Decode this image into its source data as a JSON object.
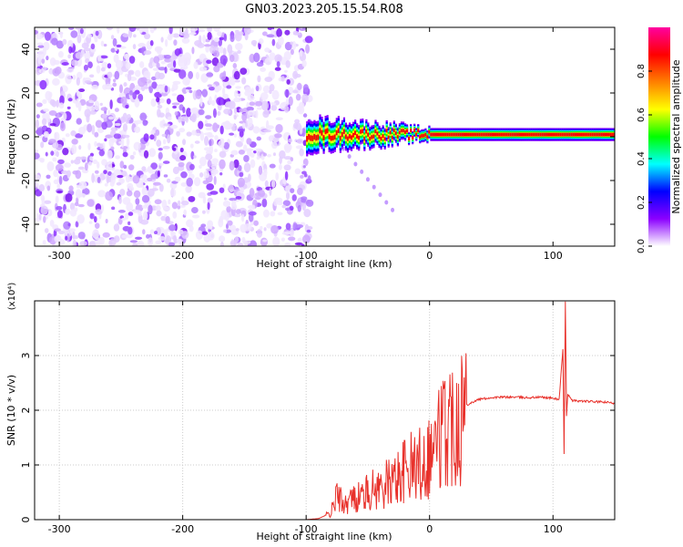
{
  "figure_title": "GN03.2023.205.15.54.R08",
  "chart_data": [
    {
      "type": "heatmap",
      "title": "",
      "xlabel": "Height of straight line (km)",
      "ylabel": "Frequency (Hz)",
      "xlim": [
        -320,
        150
      ],
      "ylim": [
        -50,
        50
      ],
      "xticks": [
        -300,
        -200,
        -100,
        0,
        100
      ],
      "yticks": [
        -40,
        -20,
        0,
        20,
        40
      ],
      "colorbar": {
        "label": "Normalized spectral amplitude",
        "range": [
          0,
          1
        ],
        "ticks": [
          0.0,
          0.2,
          0.4,
          0.6,
          0.8
        ],
        "colormap": [
          "#ffffff",
          "#8b00ff",
          "#0000ff",
          "#00ffff",
          "#00ff00",
          "#ffff00",
          "#ff8000",
          "#ff0000",
          "#ff00a0"
        ]
      },
      "features": {
        "noise_region_x": [
          -320,
          -100
        ],
        "signal_band_x": [
          -100,
          150
        ],
        "signal_center_frequency_hz": 1
      }
    },
    {
      "type": "line",
      "title": "",
      "xlabel": "Height of straight line (km)",
      "ylabel": "SNR (10 * v/v)",
      "y_multiplier": "(x10⁴)",
      "xlim": [
        -320,
        150
      ],
      "ylim": [
        0,
        4
      ],
      "xticks": [
        -300,
        -200,
        -100,
        0,
        100
      ],
      "yticks": [
        0,
        1,
        2,
        3
      ],
      "color": "#e8302a",
      "series": [
        {
          "x": [
            -320,
            -100,
            -90,
            -80,
            -75,
            -70,
            -60,
            -50,
            -40,
            -30,
            -20,
            -10,
            0,
            10,
            20,
            30,
            40,
            50,
            60,
            70,
            80,
            90,
            100,
            105,
            108,
            109,
            110,
            111,
            112,
            115,
            120,
            130,
            140,
            150
          ],
          "y": [
            0.0,
            0.0,
            0.02,
            0.12,
            0.45,
            0.3,
            0.4,
            0.5,
            0.6,
            0.7,
            0.9,
            1.0,
            1.2,
            1.6,
            1.9,
            2.1,
            2.2,
            2.23,
            2.24,
            2.24,
            2.23,
            2.24,
            2.22,
            2.2,
            3.1,
            1.2,
            4.0,
            1.9,
            2.3,
            2.18,
            2.17,
            2.16,
            2.15,
            2.13
          ]
        }
      ]
    }
  ]
}
